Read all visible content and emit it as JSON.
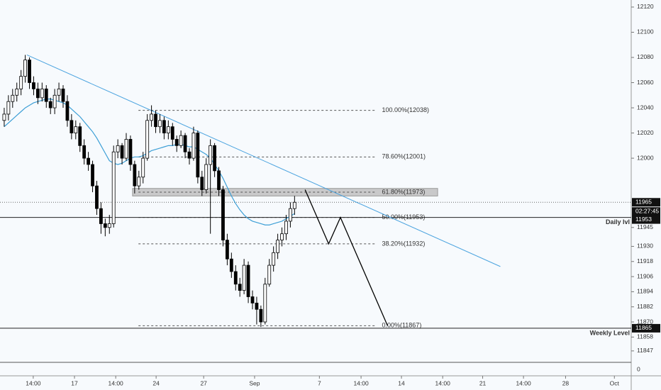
{
  "chart_data": {
    "type": "candlestick",
    "xlim": [
      0,
      150
    ],
    "ylim": [
      11841.3,
      12125.6
    ],
    "yticks": [
      12120,
      12100,
      12080,
      12060,
      12040,
      12020,
      12000,
      11945,
      11930,
      11918,
      11906,
      11894,
      11882,
      11870,
      11858,
      11847
    ],
    "xticks": [
      {
        "value": 7.9,
        "label": "14:00"
      },
      {
        "value": 17.7,
        "label": "17"
      },
      {
        "value": 27.5,
        "label": "14:00"
      },
      {
        "value": 37.1,
        "label": "24"
      },
      {
        "value": 48.4,
        "label": "27"
      },
      {
        "value": 60.5,
        "label": "Sep"
      },
      {
        "value": 75.9,
        "label": "7"
      },
      {
        "value": 85.8,
        "label": "14:00"
      },
      {
        "value": 95.4,
        "label": "14"
      },
      {
        "value": 105.2,
        "label": "14:00"
      },
      {
        "value": 114.7,
        "label": "21"
      },
      {
        "value": 124.4,
        "label": "14:00"
      },
      {
        "value": 134.4,
        "label": "28"
      },
      {
        "value": 146,
        "label": "Oct"
      }
    ],
    "pane_ticks": [
      0
    ],
    "candles": [
      [
        12030,
        12040,
        12025,
        12035
      ],
      [
        12035,
        12050,
        12030,
        12045
      ],
      [
        12045,
        12055,
        12040,
        12050
      ],
      [
        12050,
        12060,
        12045,
        12055
      ],
      [
        12055,
        12070,
        12050,
        12065
      ],
      [
        12065,
        12082,
        12060,
        12078
      ],
      [
        12078,
        12080,
        12055,
        12060
      ],
      [
        12060,
        12065,
        12050,
        12055
      ],
      [
        12055,
        12060,
        12043,
        12048
      ],
      [
        12048,
        12060,
        12045,
        12055
      ],
      [
        12055,
        12058,
        12040,
        12045
      ],
      [
        12045,
        12048,
        12035,
        12040
      ],
      [
        12040,
        12055,
        12035,
        12050
      ],
      [
        12050,
        12060,
        12045,
        12055
      ],
      [
        12055,
        12058,
        12040,
        12045
      ],
      [
        12045,
        12050,
        12025,
        12030
      ],
      [
        12030,
        12035,
        12015,
        12020
      ],
      [
        12020,
        12030,
        12015,
        12025
      ],
      [
        12025,
        12028,
        12005,
        12010
      ],
      [
        12010,
        12015,
        11995,
        12000
      ],
      [
        12000,
        12005,
        11990,
        11995
      ],
      [
        11995,
        11998,
        11973,
        11978
      ],
      [
        11978,
        11982,
        11955,
        11960
      ],
      [
        11960,
        11965,
        11940,
        11948
      ],
      [
        11948,
        11952,
        11938,
        11945
      ],
      [
        11945,
        11955,
        11940,
        11948
      ],
      [
        11948,
        12010,
        11945,
        12005
      ],
      [
        12005,
        12015,
        12000,
        12010
      ],
      [
        12010,
        12012,
        11995,
        12000
      ],
      [
        12000,
        12020,
        11998,
        12015
      ],
      [
        12015,
        12018,
        11990,
        11995
      ],
      [
        11995,
        11998,
        11972,
        11978
      ],
      [
        11978,
        11990,
        11975,
        11985
      ],
      [
        11985,
        12005,
        11980,
        12000
      ],
      [
        12000,
        12035,
        11998,
        12030
      ],
      [
        12030,
        12042,
        12025,
        12035
      ],
      [
        12035,
        12038,
        12020,
        12025
      ],
      [
        12025,
        12035,
        12020,
        12030
      ],
      [
        12030,
        12033,
        12015,
        12020
      ],
      [
        12020,
        12030,
        12015,
        12025
      ],
      [
        12025,
        12028,
        12010,
        12015
      ],
      [
        12015,
        12018,
        12005,
        12010
      ],
      [
        12010,
        12022,
        12008,
        12018
      ],
      [
        12018,
        12020,
        12000,
        12005
      ],
      [
        12005,
        12008,
        11995,
        12000
      ],
      [
        12000,
        12025,
        11998,
        12020
      ],
      [
        12020,
        12022,
        11980,
        11985
      ],
      [
        11985,
        11990,
        11970,
        11975
      ],
      [
        11975,
        12000,
        11972,
        11995
      ],
      [
        11995,
        12015,
        11940,
        12010
      ],
      [
        12010,
        12012,
        11985,
        11990
      ],
      [
        11990,
        11993,
        11970,
        11975
      ],
      [
        11975,
        11978,
        11930,
        11935
      ],
      [
        11935,
        11940,
        11915,
        11920
      ],
      [
        11920,
        11925,
        11905,
        11910
      ],
      [
        11910,
        11915,
        11895,
        11900
      ],
      [
        11900,
        11905,
        11890,
        11895
      ],
      [
        11895,
        11920,
        11892,
        11915
      ],
      [
        11915,
        11918,
        11885,
        11890
      ],
      [
        11890,
        11895,
        11880,
        11885
      ],
      [
        11885,
        11890,
        11868,
        11880
      ],
      [
        11880,
        11883,
        11866,
        11870
      ],
      [
        11870,
        11905,
        11868,
        11900
      ],
      [
        11900,
        11920,
        11898,
        11915
      ],
      [
        11915,
        11930,
        11910,
        11925
      ],
      [
        11925,
        11940,
        11920,
        11935
      ],
      [
        11935,
        11945,
        11930,
        11940
      ],
      [
        11940,
        11955,
        11935,
        11950
      ],
      [
        11950,
        11965,
        11945,
        11960
      ],
      [
        11960,
        11970,
        11955,
        11965
      ]
    ],
    "ma": [
      12025,
      12028,
      12031,
      12034,
      12037,
      12040,
      12042,
      12044,
      12045,
      12046,
      12047,
      12047,
      12046,
      12045,
      12044,
      12042,
      12039,
      12036,
      12033,
      12029,
      12025,
      12021,
      12016,
      12010,
      12004,
      11998,
      11996,
      11995,
      11996,
      11998,
      12000,
      12001,
      12001,
      12002,
      12004,
      12006,
      12007,
      12008,
      12009,
      12010,
      12010,
      12011,
      12011,
      12010,
      12009,
      12009,
      12007,
      12005,
      12003,
      12000,
      11995,
      11990,
      11984,
      11977,
      11970,
      11964,
      11959,
      11955,
      11952,
      11950,
      11949,
      11948,
      11947,
      11947,
      11948,
      11949,
      11950,
      11952,
      11954,
      11956
    ],
    "ma_color": "#3d9fd6",
    "trend_color": "#4aa3df",
    "trendline": {
      "x": [
        6.4,
        118.9
      ],
      "y": [
        12082,
        11914
      ]
    },
    "fib": {
      "x": [
        32.9,
        89.4
      ],
      "levels": [
        {
          "value": 12038,
          "label": "100.00%(12038)"
        },
        {
          "value": 12001,
          "label": "78.60%(12001)"
        },
        {
          "value": 11973,
          "label": "61.80%(11973)"
        },
        {
          "value": 11953,
          "label": "50.00%(11953)"
        },
        {
          "value": 11932,
          "label": "38.20%(11932)"
        },
        {
          "value": 11867,
          "label": "0.00%(11867)"
        }
      ]
    },
    "zone": {
      "x": [
        31.5,
        104
      ],
      "y": [
        11970,
        11976
      ]
    },
    "projection": {
      "x": [
        72.5,
        78.1,
        80.9,
        92.1
      ],
      "y": [
        11975,
        11932,
        11953,
        11867
      ]
    },
    "last_price": 11965,
    "countdown": "02:27:45",
    "levels": [
      {
        "name": "Daily lvl",
        "value": 11953
      },
      {
        "name": "Weekly Level",
        "value": 11865
      }
    ]
  }
}
